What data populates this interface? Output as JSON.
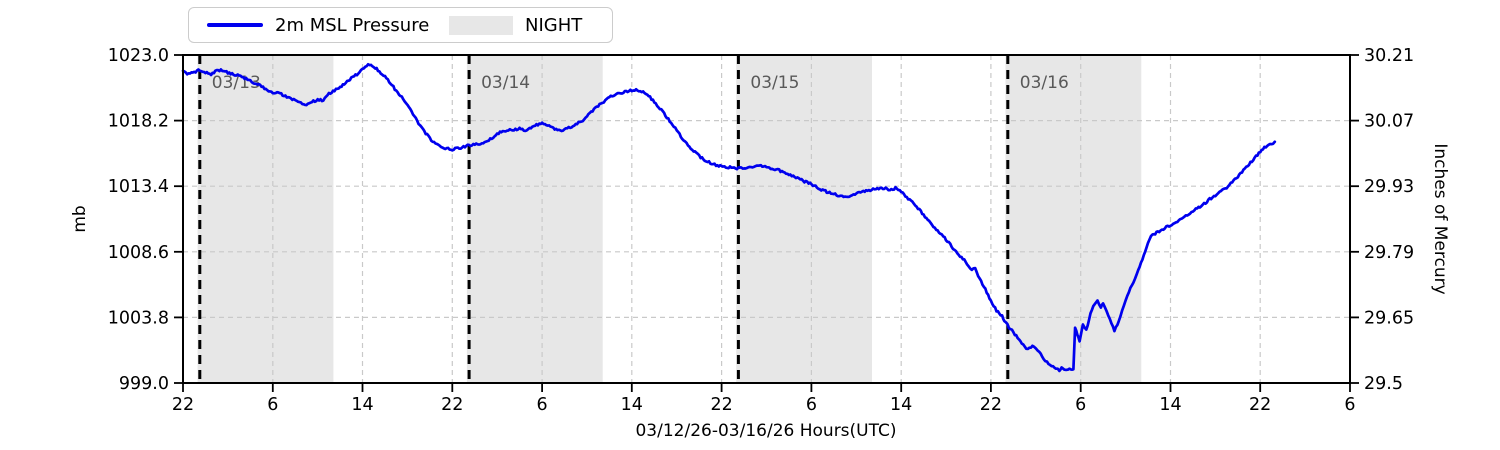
{
  "legend": {
    "series_label": "2m MSL Pressure",
    "night_label": "NIGHT"
  },
  "axes": {
    "x_label": "03/12/26-03/16/26  Hours(UTC)",
    "left_label": "mb",
    "right_label": "Inches of Mercury"
  },
  "chart_data": {
    "type": "line",
    "title": "",
    "xlabel": "03/12/26-03/16/26  Hours(UTC)",
    "ylabel_left": "mb",
    "ylabel_right": "Inches of Mercury",
    "x_axis": {
      "units": "hours since 22:00 UTC 03/12/26",
      "range_hours": [
        0,
        104
      ],
      "tick_hours": [
        0,
        8,
        16,
        24,
        32,
        40,
        48,
        56,
        64,
        72,
        80,
        88,
        96,
        104
      ],
      "tick_labels": [
        "22",
        "6",
        "14",
        "22",
        "6",
        "14",
        "22",
        "6",
        "14",
        "22",
        "6",
        "14",
        "22",
        "6"
      ]
    },
    "y_axis_left": {
      "range": [
        999.0,
        1023.0
      ],
      "ticks": [
        999.0,
        1003.8,
        1008.6,
        1013.4,
        1018.2,
        1023.0
      ],
      "tick_labels": [
        "999.0",
        "1003.8",
        "1008.6",
        "1013.4",
        "1018.2",
        "1023.0"
      ]
    },
    "y_axis_right": {
      "tick_labels": [
        "29.5",
        "29.65",
        "29.79",
        "29.93",
        "30.07",
        "30.21"
      ]
    },
    "grid": true,
    "legend_position": "top-left-outside",
    "night_bands_hours": [
      [
        1.3,
        13.4
      ],
      [
        25.3,
        37.4
      ],
      [
        49.3,
        61.4
      ],
      [
        73.3,
        85.4
      ]
    ],
    "day_lines": [
      {
        "hour": 1.5,
        "label": "03/13"
      },
      {
        "hour": 25.5,
        "label": "03/14"
      },
      {
        "hour": 49.5,
        "label": "03/15"
      },
      {
        "hour": 73.5,
        "label": "03/16"
      }
    ],
    "series": [
      {
        "name": "2m MSL Pressure",
        "color": "#0000ee",
        "points": [
          [
            0,
            1021.8
          ],
          [
            0.5,
            1021.6
          ],
          [
            1,
            1021.75
          ],
          [
            1.5,
            1021.9
          ],
          [
            2,
            1021.75
          ],
          [
            2.5,
            1021.6
          ],
          [
            3,
            1021.85
          ],
          [
            3.5,
            1021.9
          ],
          [
            4,
            1021.7
          ],
          [
            4.5,
            1021.6
          ],
          [
            5,
            1021.5
          ],
          [
            5.5,
            1021.3
          ],
          [
            6,
            1021.1
          ],
          [
            6.5,
            1020.9
          ],
          [
            7,
            1020.7
          ],
          [
            7.5,
            1020.45
          ],
          [
            8,
            1020.2
          ],
          [
            8.5,
            1020.3
          ],
          [
            9,
            1020.0
          ],
          [
            9.5,
            1019.85
          ],
          [
            10,
            1019.7
          ],
          [
            10.5,
            1019.5
          ],
          [
            11,
            1019.4
          ],
          [
            11.5,
            1019.55
          ],
          [
            12,
            1019.75
          ],
          [
            12.5,
            1019.65
          ],
          [
            13,
            1020.15
          ],
          [
            13.5,
            1020.4
          ],
          [
            14,
            1020.6
          ],
          [
            14.5,
            1020.95
          ],
          [
            15,
            1021.3
          ],
          [
            15.5,
            1021.6
          ],
          [
            16,
            1022.0
          ],
          [
            16.5,
            1022.3
          ],
          [
            17,
            1022.15
          ],
          [
            17.5,
            1021.8
          ],
          [
            18,
            1021.4
          ],
          [
            18.5,
            1020.9
          ],
          [
            19,
            1020.4
          ],
          [
            19.5,
            1019.9
          ],
          [
            20,
            1019.3
          ],
          [
            20.5,
            1018.7
          ],
          [
            21,
            1018.0
          ],
          [
            21.5,
            1017.4
          ],
          [
            22,
            1016.9
          ],
          [
            22.5,
            1016.5
          ],
          [
            23,
            1016.25
          ],
          [
            23.5,
            1016.15
          ],
          [
            24,
            1016.1
          ],
          [
            24.5,
            1016.15
          ],
          [
            25,
            1016.3
          ],
          [
            25.5,
            1016.4
          ],
          [
            26,
            1016.45
          ],
          [
            26.5,
            1016.5
          ],
          [
            27,
            1016.65
          ],
          [
            27.5,
            1016.9
          ],
          [
            28,
            1017.2
          ],
          [
            28.5,
            1017.45
          ],
          [
            29,
            1017.5
          ],
          [
            29.5,
            1017.55
          ],
          [
            30,
            1017.6
          ],
          [
            30.5,
            1017.5
          ],
          [
            31,
            1017.7
          ],
          [
            31.5,
            1017.9
          ],
          [
            32,
            1018.0
          ],
          [
            32.5,
            1017.85
          ],
          [
            33,
            1017.65
          ],
          [
            33.5,
            1017.45
          ],
          [
            34,
            1017.55
          ],
          [
            34.5,
            1017.7
          ],
          [
            35,
            1017.95
          ],
          [
            35.5,
            1018.15
          ],
          [
            36,
            1018.5
          ],
          [
            36.5,
            1018.9
          ],
          [
            37,
            1019.3
          ],
          [
            37.5,
            1019.6
          ],
          [
            38,
            1019.9
          ],
          [
            38.5,
            1020.1
          ],
          [
            39,
            1020.25
          ],
          [
            39.5,
            1020.3
          ],
          [
            40,
            1020.4
          ],
          [
            40.5,
            1020.45
          ],
          [
            41,
            1020.3
          ],
          [
            41.5,
            1020.0
          ],
          [
            42,
            1019.6
          ],
          [
            42.5,
            1019.1
          ],
          [
            43,
            1018.6
          ],
          [
            43.5,
            1018.0
          ],
          [
            44,
            1017.5
          ],
          [
            44.5,
            1016.9
          ],
          [
            45,
            1016.4
          ],
          [
            45.5,
            1016.0
          ],
          [
            46,
            1015.6
          ],
          [
            46.5,
            1015.3
          ],
          [
            47,
            1015.1
          ],
          [
            47.5,
            1014.95
          ],
          [
            48,
            1014.85
          ],
          [
            48.5,
            1014.8
          ],
          [
            49,
            1014.75
          ],
          [
            49.5,
            1014.7
          ],
          [
            50,
            1014.7
          ],
          [
            50.5,
            1014.75
          ],
          [
            51,
            1014.85
          ],
          [
            51.5,
            1014.9
          ],
          [
            52,
            1014.8
          ],
          [
            52.5,
            1014.7
          ],
          [
            53,
            1014.6
          ],
          [
            53.5,
            1014.45
          ],
          [
            54,
            1014.3
          ],
          [
            54.5,
            1014.1
          ],
          [
            55,
            1013.9
          ],
          [
            55.5,
            1013.7
          ],
          [
            56,
            1013.55
          ],
          [
            56.5,
            1013.3
          ],
          [
            57,
            1013.1
          ],
          [
            57.5,
            1012.95
          ],
          [
            58,
            1012.85
          ],
          [
            58.5,
            1012.7
          ],
          [
            59,
            1012.65
          ],
          [
            59.5,
            1012.7
          ],
          [
            60,
            1012.9
          ],
          [
            60.5,
            1013.0
          ],
          [
            61,
            1013.1
          ],
          [
            61.5,
            1013.15
          ],
          [
            62,
            1013.2
          ],
          [
            62.5,
            1013.25
          ],
          [
            63,
            1013.15
          ],
          [
            63.5,
            1013.25
          ],
          [
            64,
            1013.0
          ],
          [
            64.5,
            1012.6
          ],
          [
            65,
            1012.2
          ],
          [
            65.5,
            1011.8
          ],
          [
            66,
            1011.3
          ],
          [
            66.5,
            1010.8
          ],
          [
            67,
            1010.3
          ],
          [
            67.5,
            1009.95
          ],
          [
            68,
            1009.5
          ],
          [
            68.5,
            1009.0
          ],
          [
            69,
            1008.5
          ],
          [
            69.5,
            1008.1
          ],
          [
            70,
            1007.6
          ],
          [
            70.3,
            1007.3
          ],
          [
            70.6,
            1007.35
          ],
          [
            71,
            1006.6
          ],
          [
            71.5,
            1005.9
          ],
          [
            72,
            1005.0
          ],
          [
            72.5,
            1004.3
          ],
          [
            73,
            1003.9
          ],
          [
            73.2,
            1003.6
          ],
          [
            73.6,
            1003.1
          ],
          [
            74,
            1002.7
          ],
          [
            74.5,
            1002.2
          ],
          [
            75,
            1001.7
          ],
          [
            75.3,
            1001.45
          ],
          [
            75.7,
            1001.65
          ],
          [
            76,
            1001.55
          ],
          [
            76.3,
            1001.3
          ],
          [
            76.7,
            1000.8
          ],
          [
            77,
            1000.5
          ],
          [
            77.4,
            1000.25
          ],
          [
            77.8,
            1000.05
          ],
          [
            78.1,
            999.95
          ],
          [
            78.4,
            1000.15
          ],
          [
            78.7,
            999.95
          ],
          [
            79,
            1000.05
          ],
          [
            79.25,
            999.95
          ],
          [
            79.35,
            1000.0
          ],
          [
            79.5,
            1003.1
          ],
          [
            79.7,
            1002.5
          ],
          [
            79.9,
            1002.1
          ],
          [
            80.2,
            1003.3
          ],
          [
            80.5,
            1002.9
          ],
          [
            81,
            1004.4
          ],
          [
            81.5,
            1005.0
          ],
          [
            81.8,
            1004.55
          ],
          [
            82,
            1004.9
          ],
          [
            82.3,
            1004.2
          ],
          [
            82.6,
            1003.7
          ],
          [
            83,
            1002.8
          ],
          [
            83.4,
            1003.5
          ],
          [
            83.7,
            1004.3
          ],
          [
            84,
            1005.1
          ],
          [
            84.3,
            1005.7
          ],
          [
            84.7,
            1006.4
          ],
          [
            85,
            1007.0
          ],
          [
            85.5,
            1008.0
          ],
          [
            86,
            1009.3
          ],
          [
            86.4,
            1009.85
          ],
          [
            87,
            1010.1
          ],
          [
            87.5,
            1010.35
          ],
          [
            88,
            1010.55
          ],
          [
            88.5,
            1010.75
          ],
          [
            89,
            1011.0
          ],
          [
            89.5,
            1011.3
          ],
          [
            90,
            1011.6
          ],
          [
            90.5,
            1011.85
          ],
          [
            91,
            1012.1
          ],
          [
            91.5,
            1012.45
          ],
          [
            92,
            1012.7
          ],
          [
            92.5,
            1013.0
          ],
          [
            93,
            1013.3
          ],
          [
            93.5,
            1013.7
          ],
          [
            94,
            1014.1
          ],
          [
            94.5,
            1014.55
          ],
          [
            95,
            1015.0
          ],
          [
            95.5,
            1015.45
          ],
          [
            96,
            1015.9
          ],
          [
            96.5,
            1016.3
          ],
          [
            97,
            1016.5
          ],
          [
            97.3,
            1016.65
          ]
        ],
        "noise_zones": [
          [
            0,
            44,
            0.05
          ],
          [
            44,
            63,
            0.09
          ],
          [
            63,
            73,
            0.12
          ],
          [
            73,
            79.4,
            0.16
          ],
          [
            79.4,
            86,
            0.2
          ],
          [
            86,
            98,
            0.13
          ]
        ]
      }
    ],
    "colors": {
      "line": "#0000ee",
      "night_band": "#e7e7e7",
      "grid": "#c9c9c9",
      "day_line": "#000000",
      "day_label_text": "#595959",
      "axis": "#000000",
      "background": "#ffffff"
    }
  }
}
